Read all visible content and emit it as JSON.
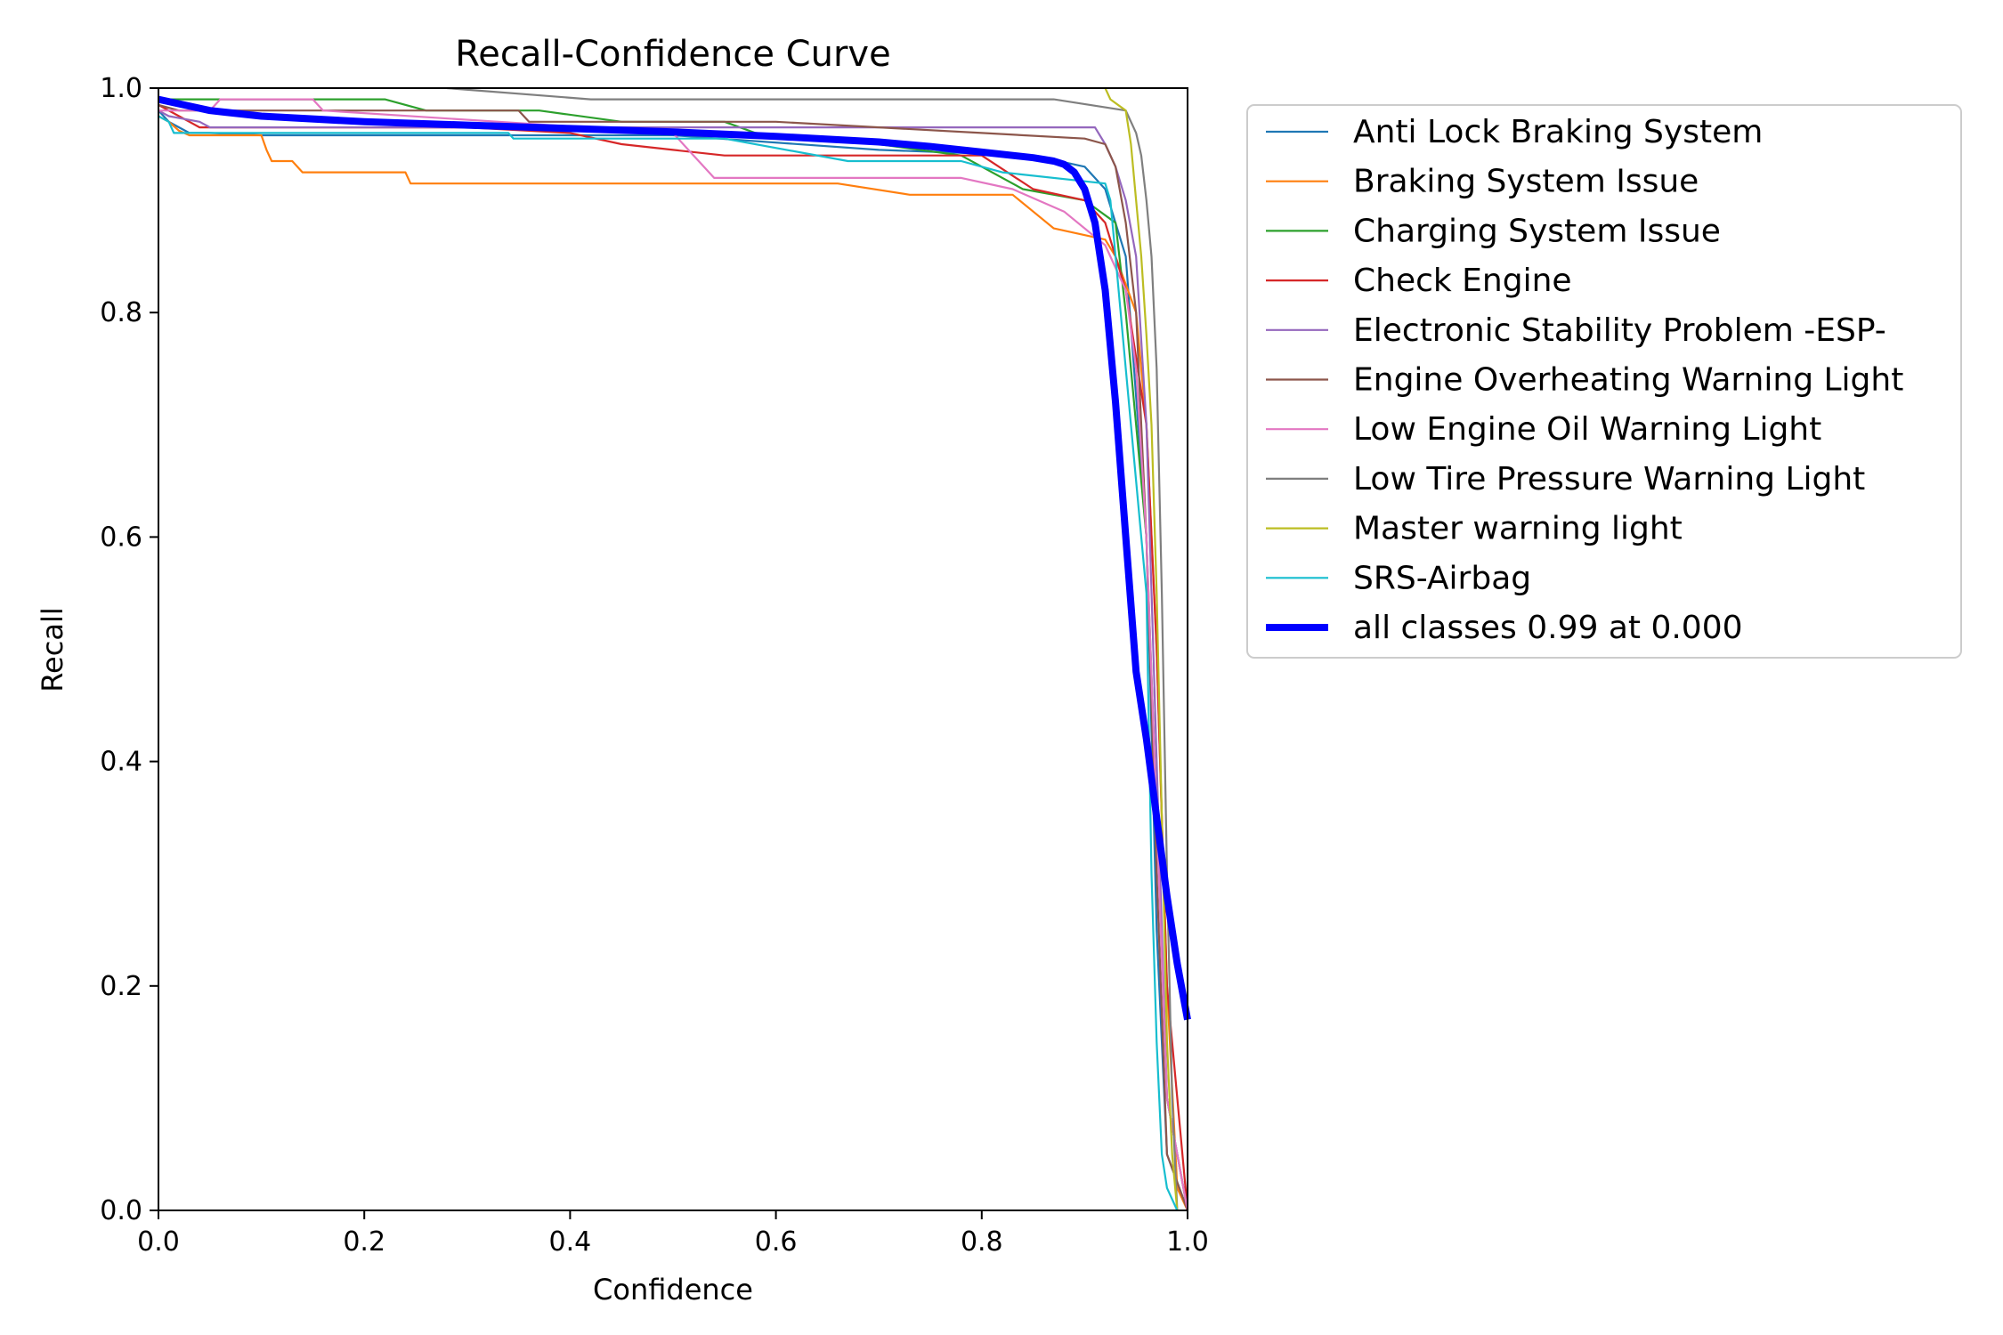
{
  "chart_data": {
    "type": "line",
    "title": "Recall-Confidence Curve",
    "xlabel": "Confidence",
    "ylabel": "Recall",
    "xlim": [
      0,
      1
    ],
    "ylim": [
      0,
      1
    ],
    "xticks": [
      "0.0",
      "0.2",
      "0.4",
      "0.6",
      "0.8",
      "1.0"
    ],
    "yticks": [
      "0.0",
      "0.2",
      "0.4",
      "0.6",
      "0.8",
      "1.0"
    ],
    "grid": false,
    "legend_position": "outside-right-top",
    "series": [
      {
        "name": "Anti Lock Braking System",
        "color": "#1f77b4",
        "width": "thin",
        "x": [
          0,
          0.01,
          0.02,
          0.03,
          0.05,
          0.1,
          0.3,
          0.5,
          0.7,
          0.85,
          0.9,
          0.92,
          0.94,
          0.96,
          0.97,
          0.98,
          1.0
        ],
        "y": [
          0.98,
          0.97,
          0.965,
          0.96,
          0.96,
          0.958,
          0.958,
          0.958,
          0.945,
          0.94,
          0.93,
          0.91,
          0.85,
          0.6,
          0.25,
          0.05,
          0
        ]
      },
      {
        "name": "Braking System Issue",
        "color": "#ff7f0e",
        "width": "thin",
        "x": [
          0,
          0.01,
          0.02,
          0.03,
          0.1,
          0.105,
          0.11,
          0.13,
          0.14,
          0.24,
          0.245,
          0.5,
          0.66,
          0.73,
          0.83,
          0.85,
          0.87,
          0.92,
          0.93,
          0.95,
          0.96,
          0.97,
          0.98,
          0.99,
          1.0
        ],
        "y": [
          0.975,
          0.97,
          0.962,
          0.958,
          0.958,
          0.945,
          0.935,
          0.935,
          0.925,
          0.925,
          0.915,
          0.915,
          0.915,
          0.905,
          0.905,
          0.89,
          0.875,
          0.865,
          0.85,
          0.8,
          0.7,
          0.5,
          0.2,
          0.02,
          0
        ]
      },
      {
        "name": "Charging System Issue",
        "color": "#2ca02c",
        "width": "thin",
        "x": [
          0,
          0.05,
          0.22,
          0.26,
          0.37,
          0.45,
          0.55,
          0.58,
          0.7,
          0.78,
          0.84,
          0.9,
          0.93,
          0.94,
          0.95,
          0.96,
          0.97,
          0.98,
          1.0
        ],
        "y": [
          0.99,
          0.99,
          0.99,
          0.98,
          0.98,
          0.97,
          0.97,
          0.96,
          0.95,
          0.94,
          0.91,
          0.9,
          0.88,
          0.8,
          0.7,
          0.6,
          0.35,
          0.1,
          0
        ]
      },
      {
        "name": "Check Engine",
        "color": "#d62728",
        "width": "thin",
        "x": [
          0,
          0.02,
          0.03,
          0.04,
          0.3,
          0.4,
          0.45,
          0.5,
          0.55,
          0.8,
          0.85,
          0.9,
          0.92,
          0.94,
          0.96,
          0.97,
          0.98,
          1.0
        ],
        "y": [
          0.985,
          0.975,
          0.97,
          0.965,
          0.965,
          0.96,
          0.95,
          0.945,
          0.94,
          0.94,
          0.91,
          0.9,
          0.88,
          0.82,
          0.7,
          0.5,
          0.2,
          0
        ]
      },
      {
        "name": "Electronic Stability Problem -ESP-",
        "color": "#9467bd",
        "width": "thin",
        "x": [
          0,
          0.01,
          0.04,
          0.05,
          0.3,
          0.6,
          0.75,
          0.91,
          0.92,
          0.93,
          0.94,
          0.95,
          0.96,
          0.97,
          0.98,
          1.0
        ],
        "y": [
          0.98,
          0.975,
          0.97,
          0.965,
          0.965,
          0.965,
          0.965,
          0.965,
          0.95,
          0.93,
          0.9,
          0.85,
          0.7,
          0.4,
          0.1,
          0
        ]
      },
      {
        "name": "Engine Overheating Warning Light",
        "color": "#8c564b",
        "width": "thin",
        "x": [
          0,
          0.02,
          0.35,
          0.36,
          0.6,
          0.7,
          0.8,
          0.9,
          0.92,
          0.93,
          0.94,
          0.95,
          0.96,
          0.97,
          0.98,
          1.0
        ],
        "y": [
          0.985,
          0.98,
          0.98,
          0.97,
          0.97,
          0.965,
          0.96,
          0.955,
          0.95,
          0.93,
          0.88,
          0.8,
          0.6,
          0.3,
          0.05,
          0
        ]
      },
      {
        "name": "Low Engine Oil Warning Light",
        "color": "#e377c2",
        "width": "thin",
        "x": [
          0,
          0.05,
          0.06,
          0.15,
          0.16,
          0.5,
          0.52,
          0.54,
          0.7,
          0.78,
          0.83,
          0.88,
          0.92,
          0.94,
          0.95,
          0.96,
          0.97,
          0.98,
          1.0
        ],
        "y": [
          0.98,
          0.98,
          0.99,
          0.99,
          0.98,
          0.96,
          0.94,
          0.92,
          0.92,
          0.92,
          0.91,
          0.89,
          0.86,
          0.82,
          0.75,
          0.6,
          0.35,
          0.1,
          0
        ]
      },
      {
        "name": "Low Tire Pressure Warning Light",
        "color": "#7f7f7f",
        "width": "thin",
        "x": [
          0.28,
          0.42,
          0.5,
          0.87,
          0.94,
          0.945,
          0.95,
          0.955,
          0.96,
          0.965,
          0.97,
          0.975,
          0.98,
          0.985,
          0.99
        ],
        "y": [
          1.0,
          0.99,
          0.99,
          0.99,
          0.98,
          0.97,
          0.96,
          0.94,
          0.9,
          0.85,
          0.75,
          0.55,
          0.3,
          0.1,
          0
        ]
      },
      {
        "name": "Master warning light",
        "color": "#bcbd22",
        "width": "thin",
        "x": [
          0.92,
          0.925,
          0.94,
          0.945,
          0.95,
          0.955,
          0.96,
          0.965,
          0.97,
          0.975,
          0.98,
          0.985,
          0.99
        ],
        "y": [
          1.0,
          0.99,
          0.98,
          0.95,
          0.9,
          0.85,
          0.78,
          0.7,
          0.55,
          0.35,
          0.15,
          0.05,
          0
        ]
      },
      {
        "name": "SRS-Airbag",
        "color": "#17becf",
        "width": "thin",
        "x": [
          0,
          0.01,
          0.015,
          0.03,
          0.34,
          0.345,
          0.45,
          0.55,
          0.67,
          0.78,
          0.8,
          0.82,
          0.92,
          0.925,
          0.93,
          0.94,
          0.95,
          0.96,
          0.965,
          0.97,
          0.975,
          0.98,
          0.99
        ],
        "y": [
          0.975,
          0.97,
          0.96,
          0.96,
          0.96,
          0.955,
          0.955,
          0.955,
          0.935,
          0.935,
          0.93,
          0.925,
          0.915,
          0.9,
          0.85,
          0.75,
          0.65,
          0.55,
          0.3,
          0.15,
          0.05,
          0.02,
          0
        ]
      },
      {
        "name": "all classes 0.99 at 0.000",
        "color": "#0000ff",
        "width": "thick",
        "x": [
          0,
          0.05,
          0.1,
          0.2,
          0.3,
          0.4,
          0.5,
          0.6,
          0.7,
          0.75,
          0.8,
          0.85,
          0.87,
          0.88,
          0.89,
          0.9,
          0.91,
          0.92,
          0.93,
          0.94,
          0.95,
          0.96,
          0.97,
          0.98,
          0.99,
          1.0
        ],
        "y": [
          0.99,
          0.98,
          0.975,
          0.97,
          0.967,
          0.964,
          0.961,
          0.957,
          0.952,
          0.948,
          0.943,
          0.938,
          0.935,
          0.932,
          0.925,
          0.91,
          0.88,
          0.82,
          0.72,
          0.6,
          0.48,
          0.42,
          0.35,
          0.28,
          0.22,
          0.17
        ]
      }
    ]
  }
}
